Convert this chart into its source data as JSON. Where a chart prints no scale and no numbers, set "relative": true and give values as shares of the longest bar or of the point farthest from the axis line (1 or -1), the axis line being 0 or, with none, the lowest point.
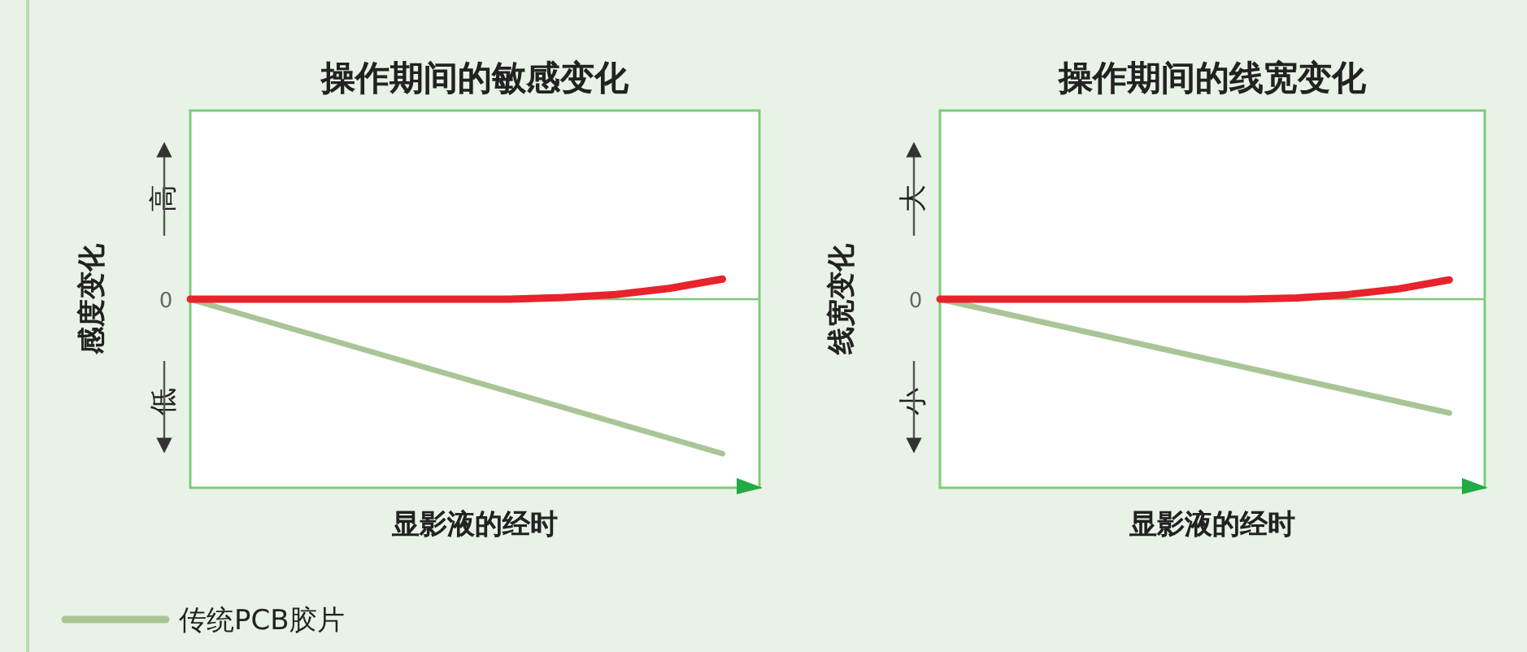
{
  "chart_data": [
    {
      "type": "line",
      "title": "操作期间的敏感变化",
      "xlabel": "显影液的经时",
      "ylabel": "感度变化",
      "relative": true,
      "legend": "bottom",
      "annotations": [
        "0",
        "高",
        "低"
      ],
      "ref_lines": [
        {
          "axis": "y",
          "value": 0,
          "color": "#7ccc7a"
        }
      ],
      "categories": [
        null,
        null,
        null,
        null,
        null,
        null,
        null,
        null,
        null,
        null,
        null
      ],
      "series": [
        {
          "color": "#e8232b",
          "values": [
            0,
            0,
            0,
            0,
            0,
            0,
            0,
            0.01,
            0.03,
            0.07,
            0.13
          ]
        },
        {
          "name": "传统PCB胶片",
          "color": "#a9c596",
          "values": [
            0,
            -0.1,
            -0.2,
            -0.3,
            -0.4,
            -0.5,
            -0.6,
            -0.7,
            -0.8,
            -0.9,
            -1
          ]
        }
      ]
    },
    {
      "type": "line",
      "title": "操作期间的线宽变化",
      "xlabel": "显影液的经时",
      "ylabel": "线宽变化",
      "relative": true,
      "annotations": [
        "0",
        "大",
        "小"
      ],
      "ref_lines": [
        {
          "axis": "y",
          "value": 0,
          "color": "#7ccc7a"
        }
      ],
      "categories": [
        null,
        null,
        null,
        null,
        null,
        null,
        null,
        null,
        null,
        null,
        null
      ],
      "series": [
        {
          "color": "#e8232b",
          "values": [
            0,
            0,
            0,
            0,
            0,
            0,
            0,
            0.01,
            0.04,
            0.09,
            0.17
          ]
        },
        {
          "color": "#a9c596",
          "values": [
            0,
            -0.1,
            -0.2,
            -0.3,
            -0.4,
            -0.5,
            -0.6,
            -0.7,
            -0.8,
            -0.9,
            -1
          ]
        }
      ]
    }
  ]
}
